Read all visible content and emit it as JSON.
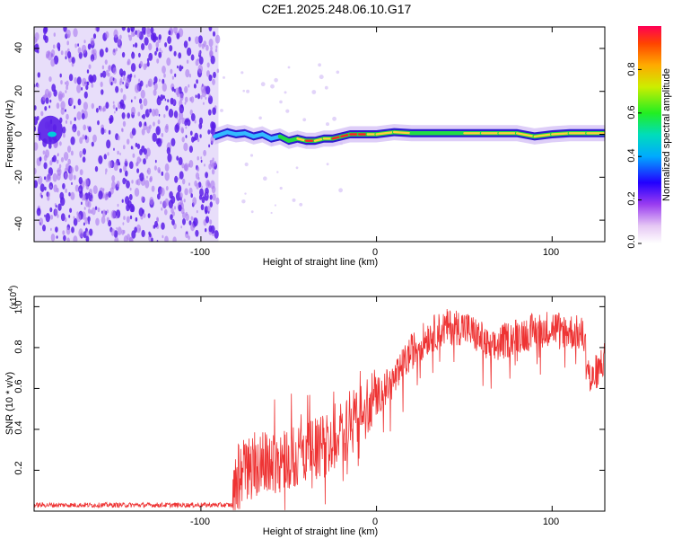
{
  "title": "C2E1.2025.248.06.10.G17",
  "colors": {
    "snr_line": "#ee3333",
    "spec_dot": "#5a1ee8",
    "spec_low": "#d6c2f6",
    "spec_mid": "#2266ff",
    "spec_green": "#22dd44",
    "spec_peak": "#ff2222",
    "spec_yellow": "#ffd23a"
  },
  "chart_data": [
    {
      "type": "heatmap",
      "name": "spectrogram",
      "xlabel": "Height of straight line (km)",
      "ylabel": "Frequency (Hz)",
      "xlim": [
        -195,
        130
      ],
      "ylim": [
        -50,
        50
      ],
      "xticks": [
        -100,
        0,
        100
      ],
      "yticks": [
        -40,
        -20,
        0,
        20,
        40
      ],
      "colorbar": {
        "label": "Normalized spectral amplitude",
        "range": [
          0.0,
          1.0
        ],
        "ticks": [
          0.0,
          0.2,
          0.4,
          0.6,
          0.8
        ],
        "tick_labels": [
          "0.0",
          "0.2",
          "0.4",
          "0.6",
          "0.8"
        ]
      },
      "noise_region_km": [
        -195,
        -90
      ],
      "signal_track": {
        "x": [
          -92,
          -85,
          -80,
          -75,
          -70,
          -65,
          -60,
          -55,
          -50,
          -45,
          -40,
          -35,
          -30,
          -25,
          -20,
          -15,
          -10,
          -5,
          0,
          10,
          20,
          30,
          40,
          50,
          60,
          70,
          80,
          90,
          100,
          110,
          120,
          130
        ],
        "freq_hz": [
          -1,
          1,
          0,
          0.5,
          -1,
          0,
          -2,
          -1,
          -3,
          -2,
          -3,
          -3,
          -2,
          -2,
          -1,
          0,
          0,
          0,
          0,
          1,
          0.5,
          0.5,
          0.5,
          0.5,
          0.5,
          0.5,
          0.5,
          -1,
          0,
          0.5,
          0.5,
          0.5
        ],
        "amplitude": [
          0.5,
          0.55,
          0.5,
          0.5,
          0.55,
          0.5,
          0.6,
          0.55,
          0.7,
          0.75,
          0.9,
          0.95,
          0.85,
          0.9,
          0.95,
          0.95,
          0.95,
          0.9,
          0.85,
          0.8,
          0.8,
          0.75,
          0.75,
          0.8,
          0.8,
          0.8,
          0.85,
          0.95,
          0.85,
          0.9,
          0.85,
          0.8
        ]
      }
    },
    {
      "type": "line",
      "name": "snr",
      "xlabel": "Height of straight line (km)",
      "ylabel": "SNR (10 * v/v)",
      "scale_label": "(x10",
      "scale_exp": "4",
      "scale_close": ")",
      "xlim": [
        -195,
        130
      ],
      "ylim": [
        0,
        1.05
      ],
      "xticks": [
        -100,
        0,
        100
      ],
      "yticks": [
        0.2,
        0.4,
        0.6,
        0.8,
        1.0
      ],
      "ytick_labels": [
        "0.2",
        "0.4",
        "0.6",
        "0.8",
        "1.0"
      ],
      "series": [
        {
          "name": "SNR",
          "x": [
            -195,
            -180,
            -160,
            -140,
            -120,
            -100,
            -90,
            -82,
            -78,
            -70,
            -60,
            -50,
            -40,
            -30,
            -20,
            -10,
            -5,
            0,
            10,
            20,
            30,
            40,
            50,
            60,
            65,
            70,
            80,
            90,
            100,
            110,
            118,
            122,
            125,
            130
          ],
          "y": [
            0.03,
            0.03,
            0.03,
            0.03,
            0.03,
            0.03,
            0.03,
            0.03,
            0.2,
            0.22,
            0.24,
            0.26,
            0.28,
            0.32,
            0.38,
            0.46,
            0.52,
            0.56,
            0.64,
            0.78,
            0.86,
            0.9,
            0.9,
            0.84,
            0.78,
            0.82,
            0.86,
            0.88,
            0.9,
            0.88,
            0.86,
            0.62,
            0.68,
            0.75
          ]
        }
      ]
    }
  ],
  "tick_labels": {
    "top_x": [
      "-100",
      "0",
      "100"
    ],
    "top_y": [
      "-40",
      "-20",
      "0",
      "20",
      "40"
    ],
    "bottom_x": [
      "-100",
      "0",
      "100"
    ]
  }
}
